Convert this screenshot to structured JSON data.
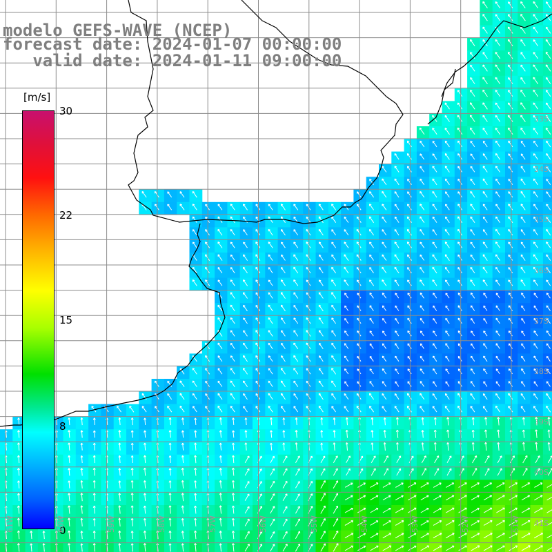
{
  "title": {
    "line1": "modelo GEFS-WAVE (NCEP)",
    "line2": "forecast date: 2024-01-07 00:00:00",
    "line3": "   valid date: 2024-01-11 09:00:00"
  },
  "colorbar": {
    "unit": "[m/s]",
    "ticks": [
      "30",
      "22",
      "15",
      "8",
      "0"
    ],
    "range": [
      0,
      30
    ],
    "colors": [
      "#0000ff",
      "#0060ff",
      "#00b0ff",
      "#00ffff",
      "#00e890",
      "#00e000",
      "#a8ff00",
      "#ffff00",
      "#ffb000",
      "#ff6a00",
      "#ff1010",
      "#e0103a",
      "#c8106e"
    ]
  },
  "latitude_labels": [
    "33S",
    "34S",
    "35S",
    "36S",
    "37S",
    "38S",
    "39S",
    "40S",
    "41S"
  ],
  "longitude_labels": [
    "61W",
    "60W",
    "59W",
    "58W",
    "57W",
    "56W",
    "55W",
    "54W",
    "53W",
    "52W",
    "51W"
  ],
  "colors": {
    "land": "#ffffff",
    "grid": "#8c8c8c",
    "coast": "#000000",
    "arrow": "#ffffff",
    "title": "#7f7f7f"
  }
}
